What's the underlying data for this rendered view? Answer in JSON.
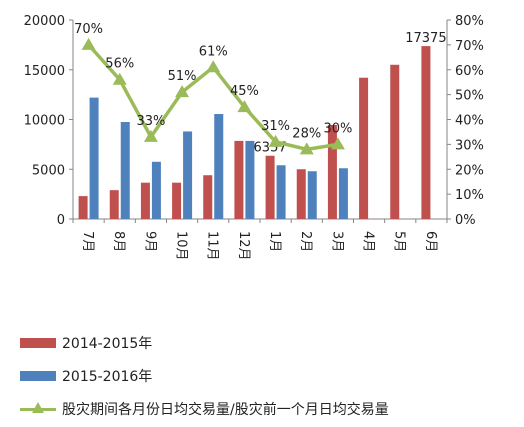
{
  "chart_data": {
    "type": "bar+line",
    "categories": [
      "7月",
      "8月",
      "9月",
      "10月",
      "11月",
      "12月",
      "1月",
      "2月",
      "3月",
      "4月",
      "5月",
      "6月"
    ],
    "bar_series": [
      {
        "name": "2014-2015年",
        "color": "#C0504D",
        "values": [
          2300,
          2900,
          3650,
          3650,
          4400,
          7850,
          6357,
          5000,
          9450,
          14200,
          15500,
          17375
        ]
      },
      {
        "name": "2015-2016年",
        "color": "#4F81BD",
        "values": [
          12200,
          9750,
          5750,
          8800,
          10550,
          7850,
          5400,
          4800,
          5100,
          null,
          null,
          null
        ]
      }
    ],
    "line_series": {
      "name": "股灾期间各月份日均交易量/股灾前一个月日均交易量",
      "color": "#9BBB59",
      "values": [
        70,
        56,
        33,
        51,
        61,
        45,
        31,
        28,
        30
      ],
      "labels": [
        "70%",
        "56%",
        "33%",
        "51%",
        "61%",
        "45%",
        "31%",
        "28%",
        "30%"
      ]
    },
    "bar_value_labels": [
      {
        "series": 0,
        "index": 6,
        "text": "6357"
      },
      {
        "series": 0,
        "index": 11,
        "text": "17375"
      }
    ],
    "y_left": {
      "min": 0,
      "max": 20000,
      "ticks": [
        0,
        5000,
        10000,
        15000,
        20000
      ],
      "tick_labels": [
        "0",
        "5000",
        "10000",
        "15000",
        "20000"
      ]
    },
    "y_right": {
      "min": 0,
      "max": 80,
      "ticks": [
        0,
        10,
        20,
        30,
        40,
        50,
        60,
        70,
        80
      ],
      "tick_labels": [
        "0%",
        "10%",
        "20%",
        "30%",
        "40%",
        "50%",
        "60%",
        "70%",
        "80%"
      ]
    },
    "grid": false,
    "legend_position": "bottom-left"
  }
}
